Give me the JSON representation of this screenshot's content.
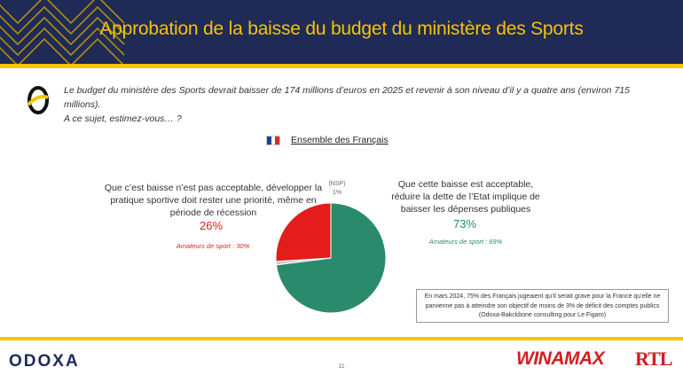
{
  "header": {
    "title": "Approbation de la baisse du budget du ministère des Sports"
  },
  "question": {
    "line1": "Le budget du ministère des Sports devrait baisser de 174 millions d’euros en 2025 et revenir à son niveau d’il y a quatre ans (environ 715 millions).",
    "line2": "A ce sujet, estimez-vous… ?"
  },
  "population": {
    "label": "Ensemble des Français"
  },
  "answers": {
    "left": {
      "text": "Que c’est baisse n’est pas acceptable, développer la pratique sportive doit rester une priorité, même en période de récession",
      "pct": "26%",
      "sub": "Amateurs de sport : 30%"
    },
    "right": {
      "text": "Que cette baisse est acceptable, réduire la dette de l’Etat implique de baisser les dépenses publiques",
      "pct": "73%",
      "sub": "Amateurs de sport : 69%"
    },
    "nsp": {
      "label": "(NSP)",
      "pct": "1%"
    }
  },
  "chart_data": {
    "type": "pie",
    "slices": [
      {
        "label": "Que cette baisse est acceptable",
        "value": 73,
        "color": "#2a8a6c"
      },
      {
        "label": "(NSP)",
        "value": 1,
        "color": "#c9c9c9"
      },
      {
        "label": "Que c’est baisse n’est pas acceptable",
        "value": 26,
        "color": "#e31c1c"
      }
    ]
  },
  "note": {
    "text": "En mars 2024, 75% des Français jugeaient qu’il serait grave pour la France qu’elle ne parvienne pas à atteindre son objectif de moins de 3% de déficit des comptes publics (Odoxa-Bakckbone consulting pour Le Figaro)"
  },
  "footer": {
    "odoxa": "ODOXA",
    "page": "11",
    "winamax": "WINAMAX",
    "rtl": "RTL"
  },
  "colors": {
    "navy": "#1f2a57",
    "gold": "#f5c400",
    "red": "#e31c1c",
    "green": "#2a8a6c"
  }
}
